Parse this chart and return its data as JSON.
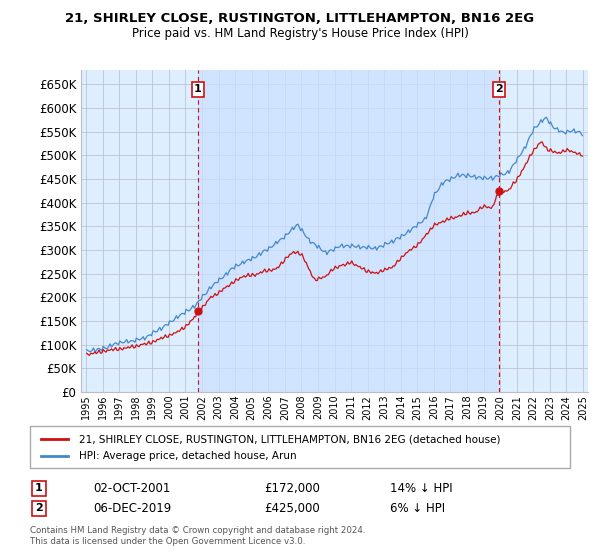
{
  "title": "21, SHIRLEY CLOSE, RUSTINGTON, LITTLEHAMPTON, BN16 2EG",
  "subtitle": "Price paid vs. HM Land Registry's House Price Index (HPI)",
  "legend_line1": "21, SHIRLEY CLOSE, RUSTINGTON, LITTLEHAMPTON, BN16 2EG (detached house)",
  "legend_line2": "HPI: Average price, detached house, Arun",
  "footnote1": "Contains HM Land Registry data © Crown copyright and database right 2024.",
  "footnote2": "This data is licensed under the Open Government Licence v3.0.",
  "sale1_label": "1",
  "sale1_date": "02-OCT-2001",
  "sale1_price": "£172,000",
  "sale1_hpi": "14% ↓ HPI",
  "sale1_year": 2001.75,
  "sale1_value": 172000,
  "sale2_label": "2",
  "sale2_date": "06-DEC-2019",
  "sale2_price": "£425,000",
  "sale2_hpi": "6% ↓ HPI",
  "sale2_year": 2019.92,
  "sale2_value": 425000,
  "ylim": [
    0,
    680000
  ],
  "yticks": [
    0,
    50000,
    100000,
    150000,
    200000,
    250000,
    300000,
    350000,
    400000,
    450000,
    500000,
    550000,
    600000,
    650000
  ],
  "xlim_start": 1994.7,
  "xlim_end": 2025.3,
  "bg_color": "#ffffff",
  "plot_bg_color": "#ddeeff",
  "grid_color": "#bbbbcc",
  "hpi_color": "#4488cc",
  "price_color": "#cc1111",
  "sale_marker_color": "#cc1111",
  "shade_color": "#cce0ff"
}
